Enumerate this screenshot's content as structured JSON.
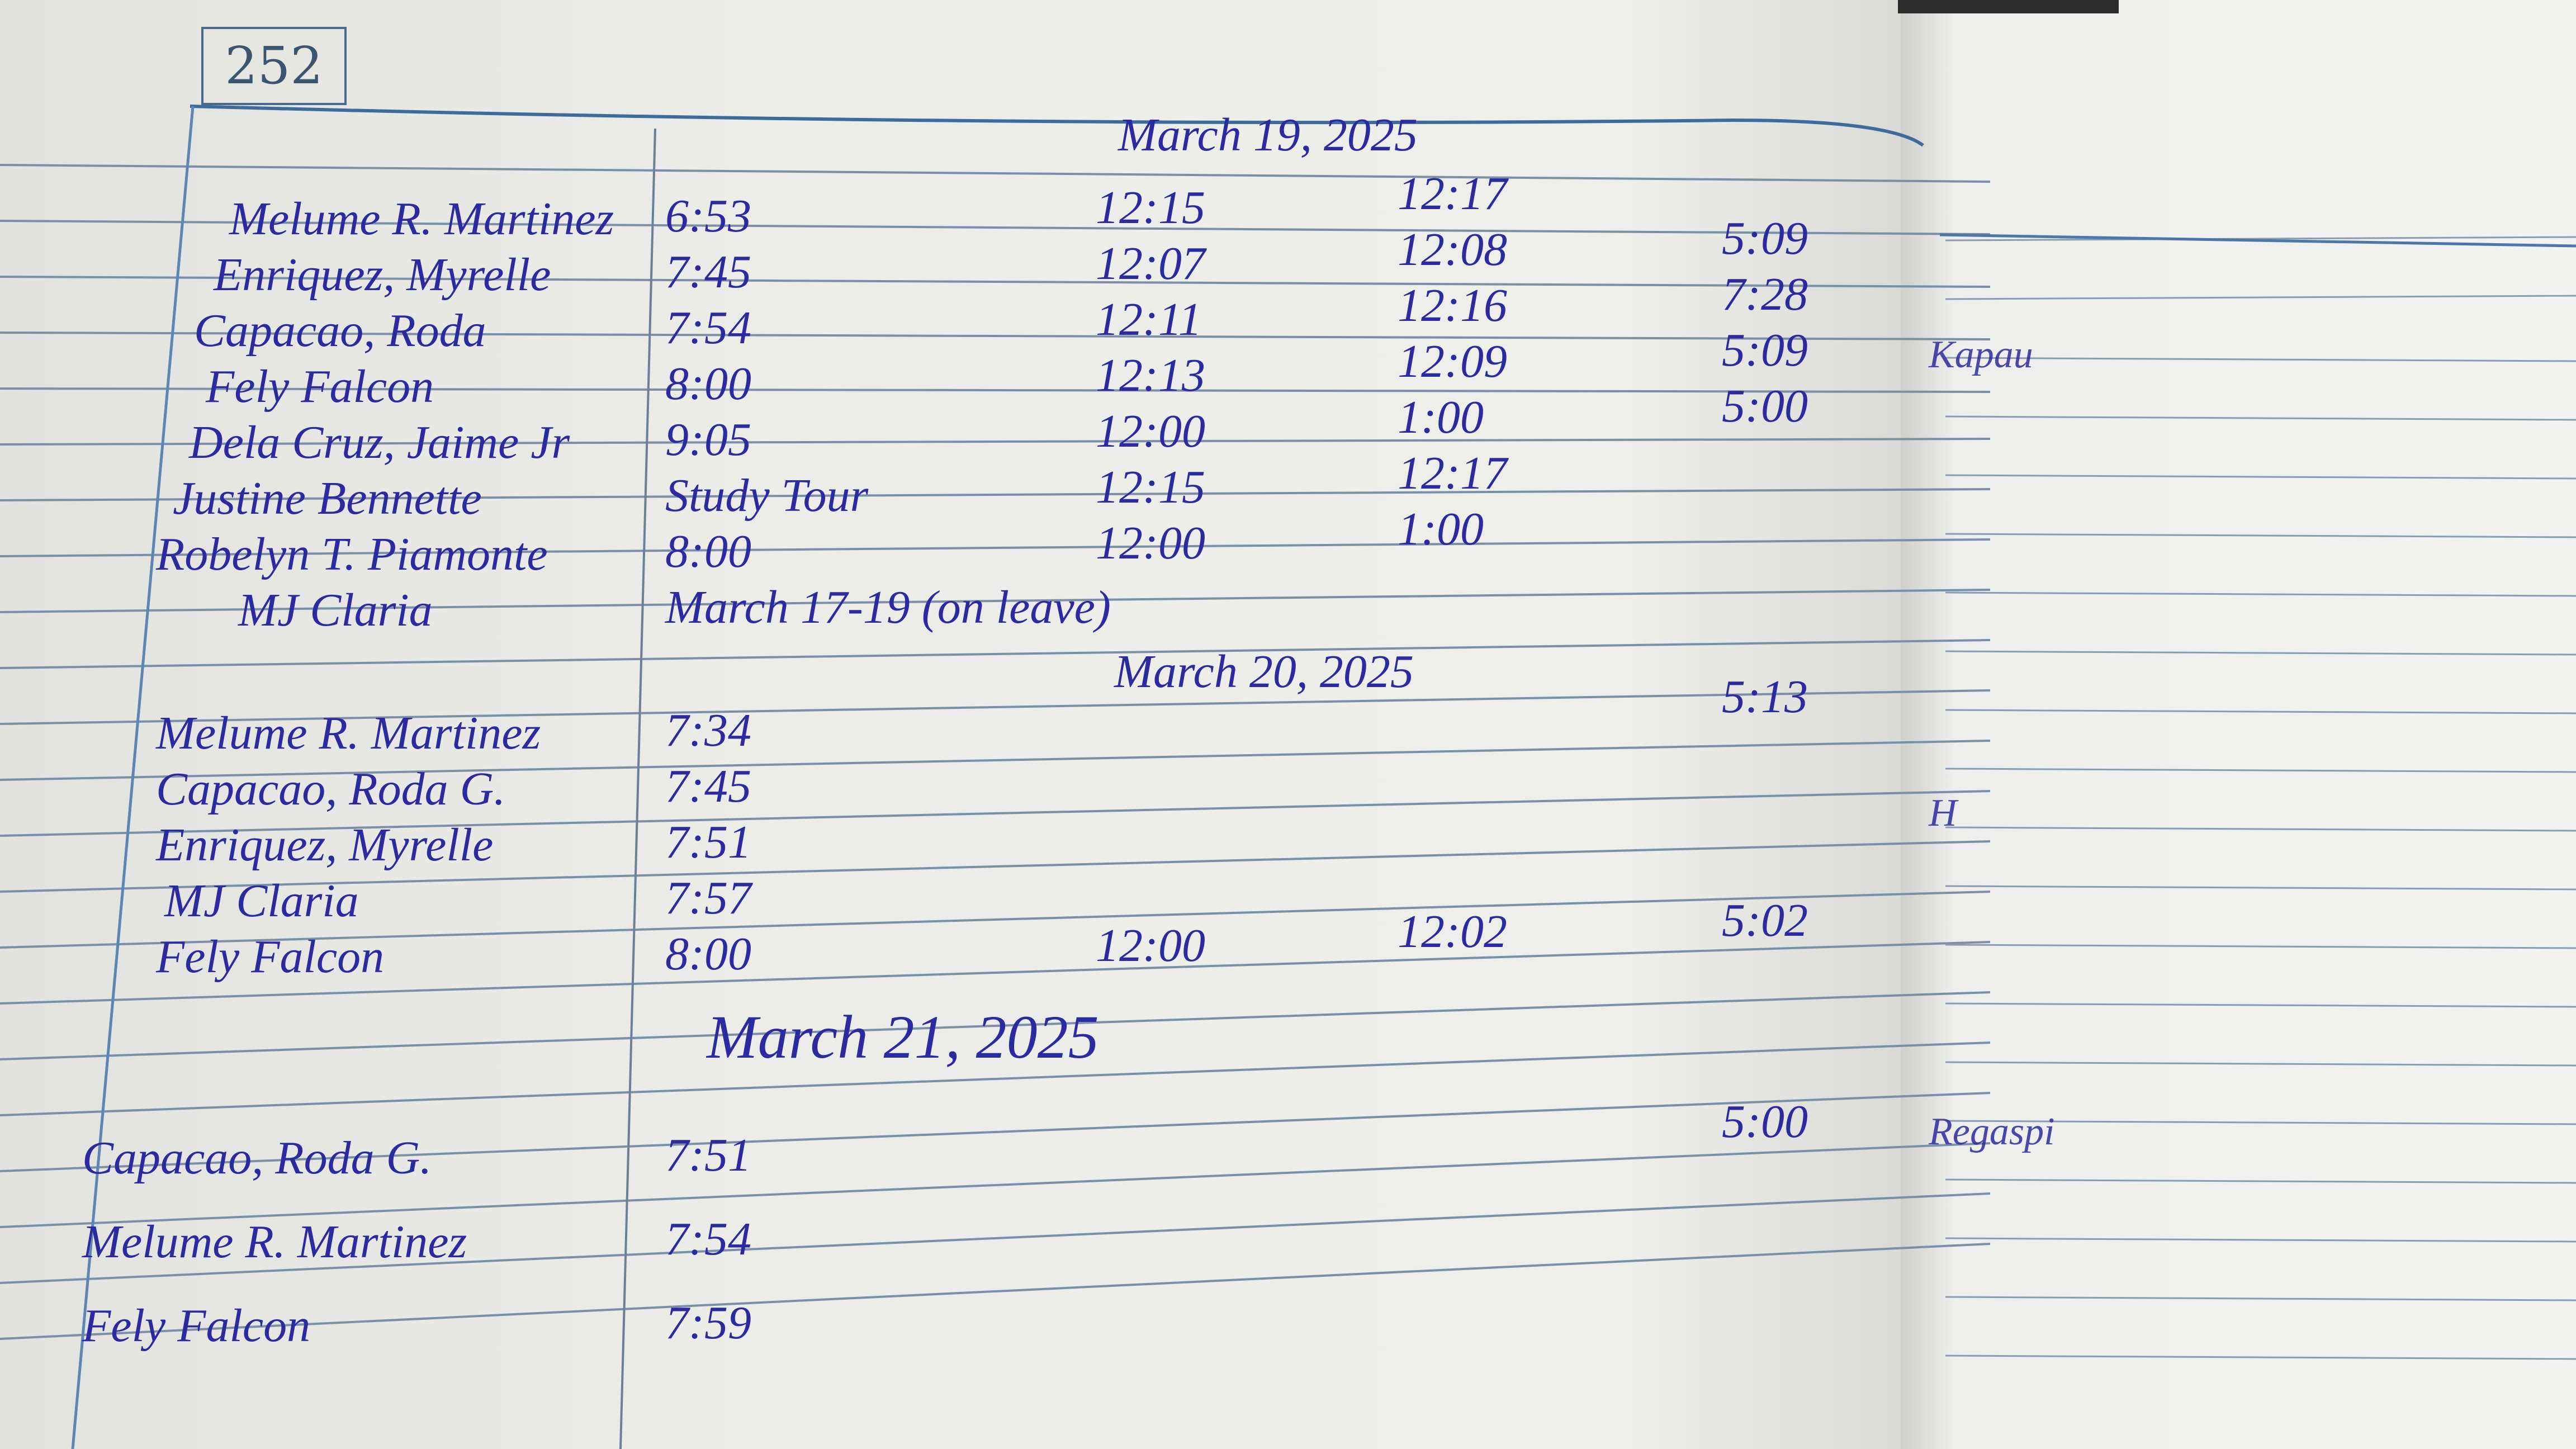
{
  "page_number": "252",
  "ink_color": "#2c2aa0",
  "sections": [
    {
      "date": "March 19, 2025",
      "entries": [
        {
          "name": "Melume R. Martinez",
          "time_in": "6:53",
          "lunch_out": "12:15",
          "lunch_in": "12:17",
          "time_out": ""
        },
        {
          "name": "Enriquez, Myrelle",
          "time_in": "7:45",
          "lunch_out": "12:07",
          "lunch_in": "12:08",
          "time_out": "5:09"
        },
        {
          "name": "Capacao, Roda",
          "time_in": "7:54",
          "lunch_out": "12:11",
          "lunch_in": "12:16",
          "time_out": "7:28"
        },
        {
          "name": "Fely Falcon",
          "time_in": "8:00",
          "lunch_out": "12:13",
          "lunch_in": "12:09",
          "time_out": "5:09"
        },
        {
          "name": "Dela Cruz, Jaime Jr",
          "time_in": "9:05",
          "lunch_out": "12:00",
          "lunch_in": "1:00",
          "time_out": "5:00"
        },
        {
          "name": "Justine Bennette",
          "time_in": "Study Tour",
          "lunch_out": "12:15",
          "lunch_in": "12:17",
          "time_out": ""
        },
        {
          "name": "Robelyn T. Piamonte",
          "time_in": "8:00",
          "lunch_out": "12:00",
          "lunch_in": "1:00",
          "time_out": ""
        },
        {
          "name": "MJ Claria",
          "time_in": "March 17-19 (on leave)",
          "lunch_out": "",
          "lunch_in": "",
          "time_out": ""
        }
      ],
      "signature": "Kapau"
    },
    {
      "date": "March 20, 2025",
      "entries": [
        {
          "name": "Melume R. Martinez",
          "time_in": "7:34",
          "lunch_out": "",
          "lunch_in": "",
          "time_out": "5:13"
        },
        {
          "name": "Capacao, Roda G.",
          "time_in": "7:45",
          "lunch_out": "",
          "lunch_in": "",
          "time_out": ""
        },
        {
          "name": "Enriquez, Myrelle",
          "time_in": "7:51",
          "lunch_out": "",
          "lunch_in": "",
          "time_out": ""
        },
        {
          "name": "MJ Claria",
          "time_in": "7:57",
          "lunch_out": "",
          "lunch_in": "",
          "time_out": ""
        },
        {
          "name": "Fely Falcon",
          "time_in": "8:00",
          "lunch_out": "12:00",
          "lunch_in": "12:02",
          "time_out": "5:02"
        }
      ],
      "signature": "H"
    },
    {
      "date": "March 21, 2025",
      "entries": [
        {
          "name": "Capacao, Roda G.",
          "time_in": "7:51",
          "lunch_out": "",
          "lunch_in": "",
          "time_out": "5:00"
        },
        {
          "name": "Melume R. Martinez",
          "time_in": "7:54",
          "lunch_out": "",
          "lunch_in": "",
          "time_out": ""
        },
        {
          "name": "Fely Falcon",
          "time_in": "7:59",
          "lunch_out": "",
          "lunch_in": "",
          "time_out": ""
        }
      ],
      "signature": "Regaspi"
    }
  ]
}
